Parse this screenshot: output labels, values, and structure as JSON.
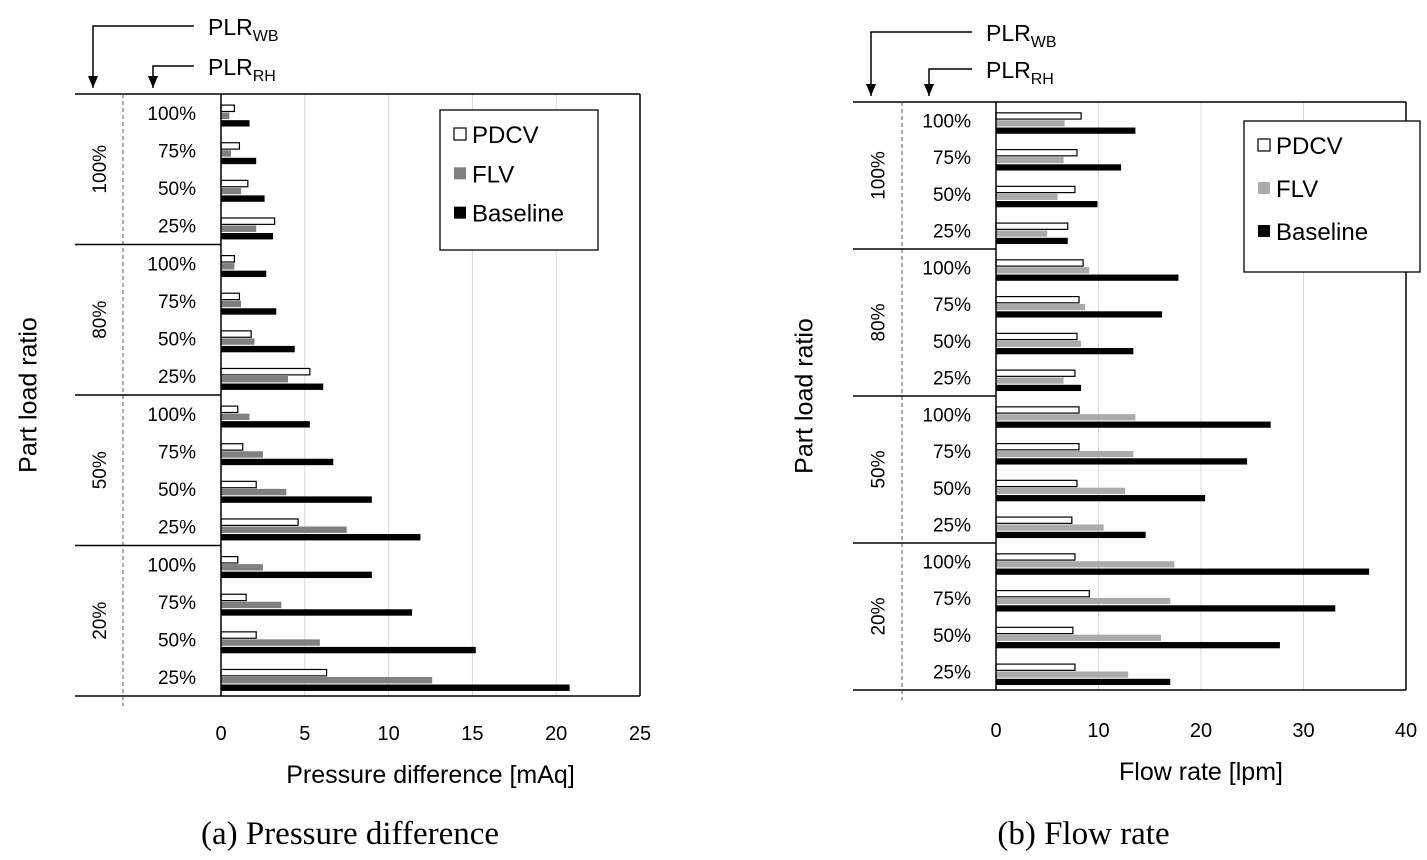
{
  "colors": {
    "PDCV": "#ffffff",
    "FLV_a": "#808080",
    "FLV_b": "#aaaaaa",
    "Baseline": "#000000",
    "grid": "#d9d9d9"
  },
  "labels": {
    "plr_main": "PLR",
    "sub_wb": "WB",
    "sub_rh": "RH",
    "ylabel": "Part load ratio"
  },
  "chart_data": [
    {
      "type": "bar",
      "orientation": "horizontal",
      "caption": "(a) Pressure difference",
      "xlabel": "Pressure difference  [mAq]",
      "ylabel": "Part load ratio",
      "xlim": [
        0,
        25
      ],
      "xticks": [
        "0",
        "5",
        "10",
        "15",
        "20",
        "25"
      ],
      "grid": true,
      "legend_position": "top-right",
      "group_labels": [
        "100%",
        "80%",
        "50%",
        "20%"
      ],
      "category_labels": [
        "100%",
        "75%",
        "50%",
        "25%"
      ],
      "series": [
        {
          "name": "PDCV",
          "color_key": "PDCV",
          "values": [
            [
              0.8,
              1.1,
              1.6,
              3.2
            ],
            [
              0.8,
              1.1,
              1.8,
              5.3
            ],
            [
              1.0,
              1.3,
              2.1,
              4.6
            ],
            [
              1.0,
              1.5,
              2.1,
              6.3
            ]
          ]
        },
        {
          "name": "FLV",
          "color_key": "FLV_a",
          "values": [
            [
              0.5,
              0.6,
              1.2,
              2.1
            ],
            [
              0.8,
              1.2,
              2.0,
              4.0
            ],
            [
              1.7,
              2.5,
              3.9,
              7.5
            ],
            [
              2.5,
              3.6,
              5.9,
              12.6
            ]
          ]
        },
        {
          "name": "Baseline",
          "color_key": "Baseline",
          "values": [
            [
              1.7,
              2.1,
              2.6,
              3.1
            ],
            [
              2.7,
              3.3,
              4.4,
              6.1
            ],
            [
              5.3,
              6.7,
              9.0,
              11.9
            ],
            [
              9.0,
              11.4,
              15.2,
              20.8
            ]
          ]
        }
      ]
    },
    {
      "type": "bar",
      "orientation": "horizontal",
      "caption": "(b) Flow rate",
      "xlabel": "Flow rate [lpm]",
      "ylabel": "Part load ratio",
      "xlim": [
        0,
        40
      ],
      "xticks": [
        "0",
        "10",
        "20",
        "30",
        "40"
      ],
      "grid": true,
      "legend_position": "top-right",
      "group_labels": [
        "100%",
        "80%",
        "50%",
        "20%"
      ],
      "category_labels": [
        "100%",
        "75%",
        "50%",
        "25%"
      ],
      "series": [
        {
          "name": "PDCV",
          "color_key": "PDCV",
          "values": [
            [
              8.3,
              7.9,
              7.7,
              7.0
            ],
            [
              8.5,
              8.1,
              7.9,
              7.7
            ],
            [
              8.1,
              8.1,
              7.9,
              7.4
            ],
            [
              7.7,
              9.1,
              7.5,
              7.7
            ]
          ]
        },
        {
          "name": "FLV",
          "color_key": "FLV_b",
          "values": [
            [
              6.7,
              6.6,
              6.0,
              5.0
            ],
            [
              9.1,
              8.7,
              8.3,
              6.6
            ],
            [
              13.6,
              13.4,
              12.6,
              10.5
            ],
            [
              17.4,
              17.0,
              16.1,
              12.9
            ]
          ]
        },
        {
          "name": "Baseline",
          "color_key": "Baseline",
          "values": [
            [
              13.6,
              12.2,
              9.9,
              7.0
            ],
            [
              17.8,
              16.2,
              13.4,
              8.3
            ],
            [
              26.8,
              24.5,
              20.4,
              14.6
            ],
            [
              36.4,
              33.1,
              27.7,
              17.0
            ]
          ]
        }
      ]
    }
  ]
}
